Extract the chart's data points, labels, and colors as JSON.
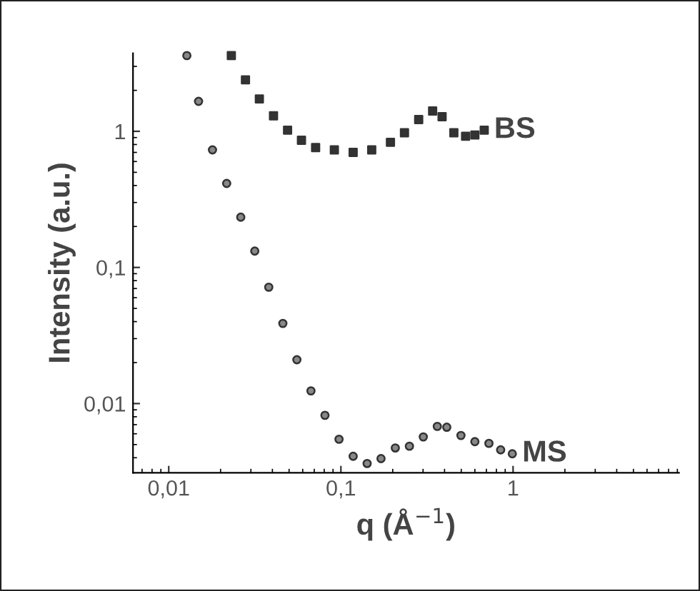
{
  "chart_data": {
    "type": "scatter",
    "xlabel": "q (Å$^{−1}$)",
    "ylabel": "Intensity (a.u.)",
    "log": "xy",
    "grid": false,
    "legend": false,
    "xlim": [
      0.0062,
      9.2
    ],
    "ylim": [
      0.0031,
      3.75
    ],
    "xticks": [
      {
        "value": 0.01,
        "label": "0,01"
      },
      {
        "value": 0.1,
        "label": "0,1"
      },
      {
        "value": 1,
        "label": "1"
      }
    ],
    "yticks": [
      {
        "value": 0.01,
        "label": "0,01"
      },
      {
        "value": 0.1,
        "label": "0,1"
      },
      {
        "value": 1,
        "label": "1"
      }
    ],
    "series": [
      {
        "name": "BS",
        "color": "#333333",
        "marker": "square",
        "x": [
          0.0231,
          0.0279,
          0.0336,
          0.0406,
          0.049,
          0.059,
          0.0713,
          0.0916,
          0.1178,
          0.151,
          0.194,
          0.234,
          0.283,
          0.341,
          0.387,
          0.453,
          0.53,
          0.6,
          0.68
        ],
        "values": [
          3.6,
          2.39,
          1.73,
          1.3,
          1.02,
          0.86,
          0.76,
          0.73,
          0.7,
          0.73,
          0.83,
          0.976,
          1.22,
          1.41,
          1.28,
          0.976,
          0.92,
          0.94,
          1.02
        ]
      },
      {
        "name": "MS",
        "color": "#333333",
        "marker": "circle",
        "x": [
          0.01274,
          0.0149,
          0.01795,
          0.0217,
          0.0262,
          0.0316,
          0.0381,
          0.046,
          0.0555,
          0.067,
          0.0808,
          0.0975,
          0.1178,
          0.142,
          0.171,
          0.207,
          0.25,
          0.301,
          0.363,
          0.412,
          0.498,
          0.6,
          0.724,
          0.847,
          0.99
        ],
        "values": [
          3.6,
          1.66,
          0.73,
          0.414,
          0.234,
          0.132,
          0.0716,
          0.0388,
          0.021,
          0.0124,
          0.0082,
          0.00547,
          0.0041,
          0.00363,
          0.00394,
          0.00472,
          0.00486,
          0.00569,
          0.0068,
          0.0067,
          0.00583,
          0.00525,
          0.0051,
          0.00457,
          0.00428
        ]
      }
    ]
  }
}
